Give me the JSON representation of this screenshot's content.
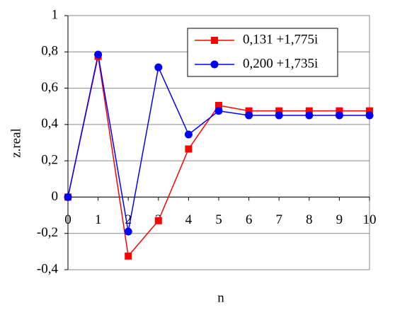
{
  "chart_data": {
    "type": "line",
    "x_label": "n",
    "y_label": "z.real",
    "x": [
      0,
      1,
      2,
      3,
      4,
      5,
      6,
      7,
      8,
      9,
      10
    ],
    "series": [
      {
        "name": "0,131 +1,775i",
        "color": "#ff0000",
        "marker": "square",
        "values": [
          0,
          0.775,
          -0.325,
          -0.13,
          0.265,
          0.505,
          0.475,
          0.475,
          0.475,
          0.475,
          0.475
        ]
      },
      {
        "name": "0,200 +1,735i",
        "color": "#0000ff",
        "marker": "circle",
        "values": [
          0,
          0.785,
          -0.19,
          0.715,
          0.345,
          0.475,
          0.45,
          0.45,
          0.45,
          0.45,
          0.45
        ]
      }
    ],
    "xlim": [
      0,
      10
    ],
    "xticks": [
      0,
      1,
      2,
      3,
      4,
      5,
      6,
      7,
      8,
      9,
      10
    ],
    "ylim": [
      -0.4,
      1
    ],
    "yticks": [
      {
        "value": -0.4,
        "label": "-0,4"
      },
      {
        "value": -0.2,
        "label": "-0,2"
      },
      0,
      {
        "value": 0.2,
        "label": "0,2"
      },
      {
        "value": 0.4,
        "label": "0,4"
      },
      {
        "value": 0.6,
        "label": "0,6"
      },
      {
        "value": 0.8,
        "label": "0,8"
      },
      1
    ],
    "grid": true,
    "legend": "top-right"
  }
}
